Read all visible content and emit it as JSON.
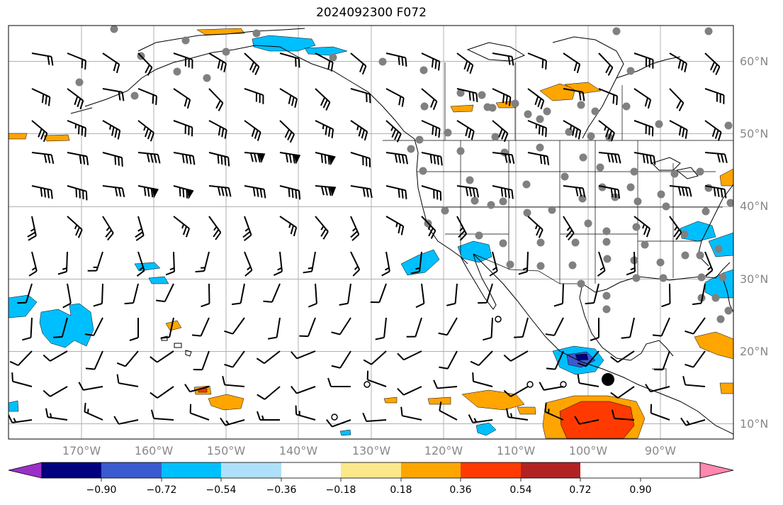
{
  "title": "2024092300 F072",
  "lat_labels": [
    "60°N",
    "50°N",
    "40°N",
    "30°N",
    "20°N",
    "10°N"
  ],
  "lon_labels": [
    "170°W",
    "160°W",
    "150°W",
    "140°W",
    "130°W",
    "120°W",
    "110°W",
    "100°W",
    "90°W"
  ],
  "colorbar": {
    "ticks": [
      "−0.90",
      "−0.72",
      "−0.54",
      "−0.36",
      "−0.18",
      "0.18",
      "0.36",
      "0.54",
      "0.72",
      "0.90"
    ],
    "colors": [
      "#9b30c8",
      "#000080",
      "#3a5bd0",
      "#00bfff",
      "#aee0fa",
      "#ffffff",
      "#fbe88a",
      "#ffa500",
      "#ff3a00",
      "#b22222",
      "#ff88b0"
    ]
  },
  "map": {
    "projection": "PlateCarree",
    "lon_range": [
      -180,
      -80
    ],
    "lat_range": [
      8,
      65
    ],
    "gridlines": true,
    "coastlines": true,
    "state_borders": true,
    "overlay": [
      "wind barbs",
      "station dots",
      "shaded anomaly contours"
    ]
  }
}
